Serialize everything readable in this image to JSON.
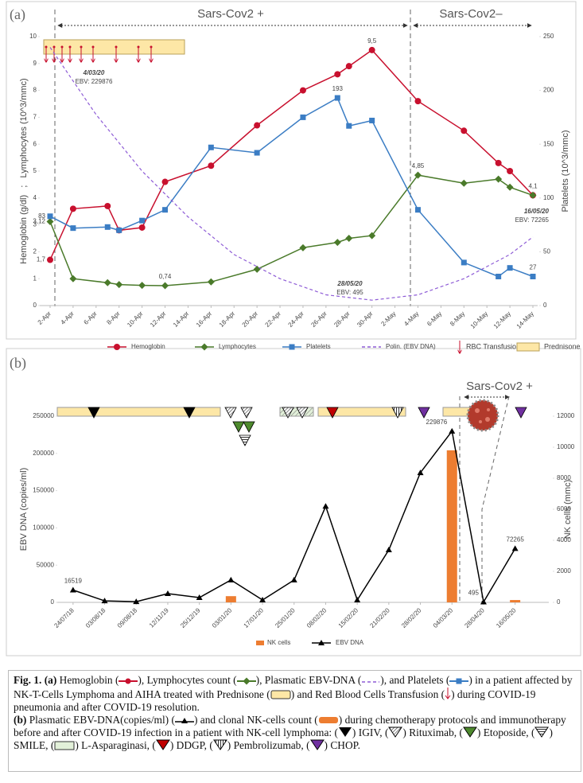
{
  "chart_data": [
    {
      "type": "line",
      "panel_label": "(a)",
      "periods": [
        "Sars-Cov2 +",
        "Sars-Cov2–"
      ],
      "categories": [
        "2-Apr",
        "4-Apr",
        "6-Apr",
        "8-Apr",
        "10-Apr",
        "12-Apr",
        "14-Apr",
        "16-Apr",
        "18-Apr",
        "20-Apr",
        "22-Apr",
        "24-Apr",
        "26-Apr",
        "28-Apr",
        "30-Apr",
        "2-May",
        "4-May",
        "6-May",
        "8-May",
        "10-May",
        "12-May",
        "14-May"
      ],
      "series": [
        {
          "name": "Hemoglobin",
          "color": "#c8102e",
          "marker": "circle",
          "x": [
            "2-Apr",
            "4-Apr",
            "7-Apr",
            "8-Apr",
            "10-Apr",
            "12-Apr",
            "16-Apr",
            "20-Apr",
            "24-Apr",
            "27-Apr",
            "28-Apr",
            "30-Apr",
            "4-May",
            "8-May",
            "11-May",
            "12-May",
            "14-May"
          ],
          "values": [
            1.7,
            3.6,
            3.7,
            2.8,
            2.9,
            4.6,
            5.2,
            6.7,
            8.0,
            8.6,
            8.9,
            9.5,
            7.6,
            6.5,
            5.3,
            5.0,
            4.1
          ],
          "value_labels": [
            "1,7",
            null,
            null,
            null,
            null,
            null,
            null,
            null,
            null,
            null,
            null,
            "9,5",
            null,
            null,
            null,
            null,
            null
          ]
        },
        {
          "name": "Lymphocytes",
          "color": "#4a7a2a",
          "marker": "diamond",
          "x": [
            "2-Apr",
            "4-Apr",
            "7-Apr",
            "8-Apr",
            "10-Apr",
            "12-Apr",
            "16-Apr",
            "20-Apr",
            "24-Apr",
            "27-Apr",
            "28-Apr",
            "30-Apr",
            "4-May",
            "8-May",
            "11-May",
            "12-May",
            "14-May"
          ],
          "values": [
            3.12,
            1.0,
            0.85,
            0.78,
            0.75,
            0.74,
            0.88,
            1.35,
            2.15,
            2.35,
            2.5,
            2.6,
            4.85,
            4.55,
            4.7,
            4.4,
            4.1
          ],
          "value_labels": [
            "3,12",
            null,
            null,
            null,
            null,
            "0,74",
            null,
            null,
            null,
            null,
            null,
            null,
            "4,85",
            null,
            null,
            null,
            "4,1"
          ]
        },
        {
          "name": "Platelets",
          "color": "#3b7dc4",
          "marker": "square",
          "axis": "y2",
          "x": [
            "2-Apr",
            "4-Apr",
            "7-Apr",
            "8-Apr",
            "10-Apr",
            "12-Apr",
            "16-Apr",
            "20-Apr",
            "24-Apr",
            "27-Apr",
            "28-Apr",
            "30-Apr",
            "4-May",
            "8-May",
            "11-May",
            "12-May",
            "14-May"
          ],
          "values": [
            83,
            72,
            73,
            70,
            79,
            89,
            147,
            142,
            175,
            193,
            167,
            172,
            89,
            40,
            27,
            35,
            27
          ],
          "value_labels": [
            "83",
            null,
            null,
            null,
            null,
            null,
            null,
            null,
            null,
            "193",
            null,
            null,
            null,
            null,
            null,
            null,
            "27"
          ]
        },
        {
          "name": "Polin. (EBV DNA)",
          "color": "#8e5cd6",
          "marker": "none",
          "dash": true,
          "x": [
            "2-Apr",
            "6-Apr",
            "10-Apr",
            "14-Apr",
            "18-Apr",
            "22-Apr",
            "26-Apr",
            "30-Apr",
            "4-May",
            "8-May",
            "12-May",
            "14-May"
          ],
          "values": [
            9.6,
            7.1,
            5.0,
            3.3,
            1.9,
            1.0,
            0.4,
            0.2,
            0.4,
            1.0,
            1.9,
            2.55
          ]
        }
      ],
      "legend_extra": [
        "RBC Transfusion",
        "Prednisone"
      ],
      "annotations": [
        {
          "date": "4/03/20",
          "text": "EBV: 229876"
        },
        {
          "date": "28/05/20",
          "text": "EBV: 495"
        },
        {
          "date": "16/05/20",
          "text": "EBV: 72265"
        }
      ],
      "ylabel": "Hemoglobin (g/dl)   ;   Lymphocytes (10^3/mmc)",
      "y2label": "Platelets (10^3/mmc)",
      "ylim": [
        0,
        10
      ],
      "yticks": [
        0,
        1,
        2,
        3,
        4,
        5,
        6,
        7,
        8,
        9,
        10
      ],
      "y2lim": [
        0,
        250
      ],
      "y2ticks": [
        0,
        50,
        100,
        150,
        200,
        250
      ]
    },
    {
      "type": "combo",
      "panel_label": "(b)",
      "period": "Sars-Cov2 +",
      "categories": [
        "24/07/18",
        "03/08/18",
        "09/08/18",
        "12/11/19",
        "25/12/19",
        "03/01/20",
        "17/01/20",
        "25/01/20",
        "08/02/20",
        "15/02/20",
        "21/02/20",
        "28/02/20",
        "04/03/20",
        "28/04/20",
        "16/05/20"
      ],
      "series": [
        {
          "name": "NK cells",
          "type": "bar",
          "color": "#ed7d31",
          "axis": "y2",
          "values": [
            null,
            null,
            null,
            null,
            null,
            400,
            null,
            null,
            null,
            null,
            null,
            null,
            9800,
            null,
            150
          ]
        },
        {
          "name": "EBV DNA",
          "type": "line",
          "color": "#000000",
          "marker": "triangle",
          "values": [
            16519,
            2000,
            1000,
            11700,
            6400,
            30000,
            3200,
            30000,
            129000,
            3200,
            70500,
            174000,
            229876,
            495,
            72265
          ],
          "value_labels": [
            "16519",
            null,
            null,
            null,
            null,
            null,
            null,
            null,
            null,
            null,
            null,
            null,
            "229876",
            "495",
            "72265"
          ]
        }
      ],
      "ylabel": "EBV DNA (copies/ml)",
      "y2label": "NK cells (mmc)",
      "ylim": [
        0,
        250000
      ],
      "yticks": [
        0,
        50000,
        100000,
        150000,
        200000,
        250000
      ],
      "y2lim": [
        0,
        12000
      ],
      "y2ticks": [
        0,
        2000,
        4000,
        6000,
        8000,
        10000,
        12000
      ]
    }
  ],
  "caption": {
    "a": [
      "Fig. 1.",
      " (a)",
      " Hemoglobin (",
      "), Lymphocytes count (",
      "), Plasmatic EBV-DNA (",
      "), and Platelets (",
      ") in a patient affected by NK-T-Cells Lymphoma and AIHA treated with Prednisone (",
      ") and Red Blood Cells Transfusion (",
      ") during COVID-19 pneumonia and after COVID-19 resolution."
    ],
    "b": [
      "(b)",
      " Plasmatic EBV-DNA(copies/ml) (",
      ") and clonal NK-cells count (",
      ") during chemotherapy protocols and immunotherapy before and after COVID-19 infection in a patient with NK-cell lymphoma: (",
      ") IGIV, (",
      ") Rituximab, (",
      ") Etoposide, (",
      ") SMILE, (",
      ") L-Asparaginasi, (",
      ") DDGP, (",
      ") Pembrolizumab, (",
      ") CHOP."
    ]
  }
}
